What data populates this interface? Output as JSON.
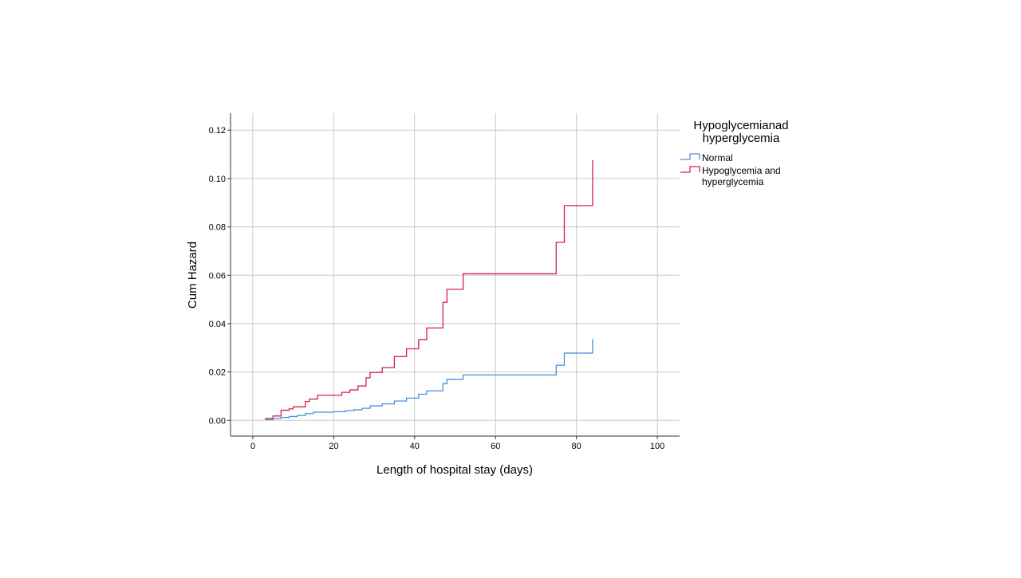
{
  "chart_data": {
    "type": "line",
    "xlabel": "Length of hospital stay (days)",
    "ylabel": "Cum Hazard",
    "xlim": [
      -5.5,
      105.5
    ],
    "ylim": [
      -0.0065,
      0.127
    ],
    "x_ticks": [
      0,
      20,
      40,
      60,
      80,
      100
    ],
    "x_tick_labels": [
      "0",
      "20",
      "40",
      "60",
      "80",
      "100"
    ],
    "y_ticks": [
      0,
      0.02,
      0.04,
      0.06,
      0.08,
      0.1,
      0.12
    ],
    "y_tick_labels": [
      "0.00",
      "0.02",
      "0.04",
      "0.06",
      "0.08",
      "0.10",
      "0.12"
    ],
    "grid": true,
    "step": true,
    "legend": {
      "title_lines": [
        "Hypoglycemianad",
        "hyperglycemia"
      ],
      "placement": "right"
    },
    "series": [
      {
        "name": "Normal",
        "label_lines": [
          "Normal"
        ],
        "color": "#4a90d9",
        "x": [
          3,
          5,
          7,
          9,
          11,
          13,
          15,
          20,
          23,
          25,
          27,
          29,
          32,
          35,
          38,
          41,
          43,
          47,
          48,
          52,
          75,
          77,
          84,
          84
        ],
        "y": [
          0.0003,
          0.0008,
          0.0012,
          0.0016,
          0.002,
          0.0028,
          0.0034,
          0.0036,
          0.004,
          0.0044,
          0.005,
          0.006,
          0.0068,
          0.008,
          0.0092,
          0.0108,
          0.0122,
          0.0152,
          0.017,
          0.0188,
          0.0228,
          0.0278,
          0.0278,
          0.0336
        ]
      },
      {
        "name": "Hypoglycemia and hyperglycemia",
        "label_lines": [
          "Hypoglycemia and",
          "hyperglycemia"
        ],
        "color": "#d6204b",
        "x": [
          3,
          5,
          7,
          9,
          10,
          13,
          14,
          16,
          22,
          24,
          26,
          28,
          29,
          32,
          35,
          38,
          41,
          43,
          47,
          48,
          52,
          75,
          77,
          84,
          84
        ],
        "y": [
          0.0008,
          0.0018,
          0.0042,
          0.0048,
          0.0056,
          0.0078,
          0.0088,
          0.0104,
          0.0116,
          0.0126,
          0.0142,
          0.0176,
          0.0198,
          0.0218,
          0.0264,
          0.0296,
          0.0334,
          0.0382,
          0.0488,
          0.0542,
          0.0606,
          0.0736,
          0.0888,
          0.0888,
          0.1076
        ]
      }
    ]
  }
}
